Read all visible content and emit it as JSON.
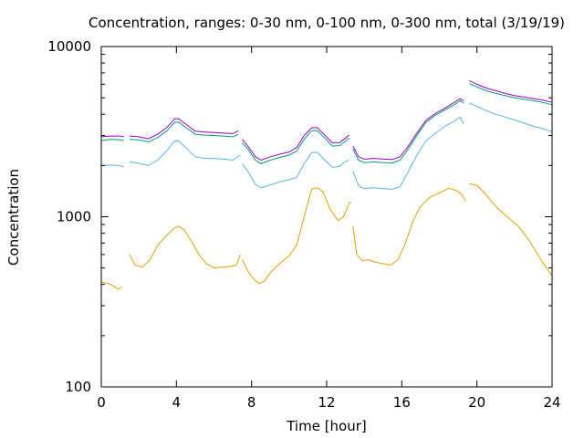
{
  "chart_data": {
    "type": "line",
    "title": "Concentration, ranges: 0-30 nm, 0-100 nm, 0-300 nm, total (3/19/19)",
    "xlabel": "Time [hour]",
    "ylabel": "Concentration",
    "xlim": [
      0,
      24
    ],
    "ylim": [
      100,
      10000
    ],
    "yscale": "log",
    "grid": false,
    "legend": "none",
    "x_ticks": [
      "0",
      "4",
      "8",
      "12",
      "16",
      "20",
      "24"
    ],
    "y_ticks": [
      "100",
      "1000",
      "10000"
    ],
    "series": [
      {
        "color": "#e69f00",
        "segments": [
          [
            [
              0,
              415
            ],
            [
              0.5,
              400
            ],
            [
              0.9,
              375
            ],
            [
              1.1,
              385
            ]
          ],
          [
            [
              1.5,
              600
            ],
            [
              1.8,
              520
            ],
            [
              2.2,
              505
            ],
            [
              2.6,
              560
            ],
            [
              3.0,
              680
            ],
            [
              3.5,
              780
            ],
            [
              3.9,
              860
            ],
            [
              4.1,
              880
            ],
            [
              4.4,
              840
            ],
            [
              4.8,
              720
            ],
            [
              5.2,
              600
            ],
            [
              5.6,
              530
            ],
            [
              6.0,
              500
            ],
            [
              6.4,
              505
            ],
            [
              6.8,
              510
            ],
            [
              7.2,
              520
            ],
            [
              7.4,
              600
            ]
          ],
          [
            [
              7.5,
              560
            ],
            [
              7.8,
              480
            ],
            [
              8.1,
              430
            ],
            [
              8.4,
              405
            ],
            [
              8.7,
              420
            ],
            [
              9.0,
              470
            ],
            [
              9.5,
              530
            ],
            [
              10.0,
              590
            ],
            [
              10.4,
              680
            ],
            [
              10.8,
              1000
            ],
            [
              11.2,
              1450
            ],
            [
              11.5,
              1480
            ],
            [
              11.8,
              1400
            ],
            [
              12.2,
              1100
            ],
            [
              12.6,
              950
            ],
            [
              12.9,
              1000
            ],
            [
              13.2,
              1200
            ],
            [
              13.3,
              1220
            ]
          ],
          [
            [
              13.4,
              880
            ],
            [
              13.6,
              600
            ],
            [
              13.9,
              550
            ],
            [
              14.2,
              560
            ],
            [
              14.6,
              540
            ],
            [
              15.0,
              530
            ],
            [
              15.4,
              520
            ],
            [
              15.8,
              560
            ],
            [
              16.2,
              700
            ],
            [
              16.6,
              950
            ],
            [
              17.0,
              1150
            ],
            [
              17.5,
              1300
            ],
            [
              18.0,
              1380
            ],
            [
              18.5,
              1470
            ],
            [
              18.9,
              1430
            ],
            [
              19.2,
              1350
            ],
            [
              19.4,
              1230
            ]
          ],
          [
            [
              19.6,
              1560
            ],
            [
              20.0,
              1530
            ],
            [
              20.4,
              1380
            ],
            [
              21.0,
              1150
            ],
            [
              21.6,
              1000
            ],
            [
              22.2,
              880
            ],
            [
              22.8,
              720
            ],
            [
              23.4,
              560
            ],
            [
              24.0,
              450
            ]
          ]
        ]
      },
      {
        "color": "#56b4e9",
        "segments": [
          [
            [
              0,
              2000
            ],
            [
              0.5,
              2010
            ],
            [
              1.0,
              2000
            ],
            [
              1.2,
              1960
            ]
          ],
          [
            [
              1.5,
              2100
            ],
            [
              2.0,
              2060
            ],
            [
              2.5,
              2000
            ],
            [
              3.0,
              2150
            ],
            [
              3.5,
              2450
            ],
            [
              3.9,
              2780
            ],
            [
              4.1,
              2800
            ],
            [
              4.5,
              2550
            ],
            [
              5.0,
              2250
            ],
            [
              5.5,
              2200
            ],
            [
              6.0,
              2200
            ],
            [
              6.5,
              2180
            ],
            [
              7.0,
              2150
            ],
            [
              7.4,
              2300
            ]
          ],
          [
            [
              7.5,
              2050
            ],
            [
              7.8,
              1850
            ],
            [
              8.2,
              1550
            ],
            [
              8.5,
              1480
            ],
            [
              9.0,
              1540
            ],
            [
              9.5,
              1600
            ],
            [
              10.0,
              1650
            ],
            [
              10.4,
              1700
            ],
            [
              10.8,
              2050
            ],
            [
              11.2,
              2380
            ],
            [
              11.5,
              2390
            ],
            [
              11.9,
              2150
            ],
            [
              12.3,
              1950
            ],
            [
              12.7,
              1980
            ],
            [
              13.0,
              2120
            ],
            [
              13.2,
              2150
            ]
          ],
          [
            [
              13.4,
              1850
            ],
            [
              13.7,
              1520
            ],
            [
              14.0,
              1460
            ],
            [
              14.5,
              1480
            ],
            [
              15.0,
              1460
            ],
            [
              15.5,
              1450
            ],
            [
              15.9,
              1500
            ],
            [
              16.3,
              1800
            ],
            [
              16.8,
              2300
            ],
            [
              17.3,
              2800
            ],
            [
              17.8,
              3100
            ],
            [
              18.3,
              3400
            ],
            [
              18.8,
              3650
            ],
            [
              19.1,
              3850
            ],
            [
              19.3,
              3500
            ]
          ],
          [
            [
              19.6,
              4650
            ],
            [
              20.0,
              4450
            ],
            [
              20.5,
              4200
            ],
            [
              21.0,
              4000
            ],
            [
              21.5,
              3850
            ],
            [
              22.0,
              3700
            ],
            [
              22.5,
              3550
            ],
            [
              23.0,
              3400
            ],
            [
              23.5,
              3300
            ],
            [
              24.0,
              3150
            ]
          ]
        ]
      },
      {
        "color": "#009e73",
        "segments": [
          [
            [
              0,
              2800
            ],
            [
              0.5,
              2850
            ],
            [
              1.0,
              2830
            ],
            [
              1.2,
              2800
            ]
          ],
          [
            [
              1.5,
              2850
            ],
            [
              2.0,
              2830
            ],
            [
              2.5,
              2750
            ],
            [
              3.0,
              2920
            ],
            [
              3.5,
              3200
            ],
            [
              3.9,
              3580
            ],
            [
              4.1,
              3600
            ],
            [
              4.5,
              3350
            ],
            [
              5.0,
              3050
            ],
            [
              5.5,
              3020
            ],
            [
              6.0,
              3000
            ],
            [
              6.5,
              2980
            ],
            [
              7.0,
              2950
            ],
            [
              7.3,
              3050
            ]
          ],
          [
            [
              7.5,
              2720
            ],
            [
              7.8,
              2500
            ],
            [
              8.2,
              2150
            ],
            [
              8.5,
              2050
            ],
            [
              9.0,
              2150
            ],
            [
              9.5,
              2230
            ],
            [
              10.0,
              2300
            ],
            [
              10.4,
              2430
            ],
            [
              10.8,
              2850
            ],
            [
              11.2,
              3200
            ],
            [
              11.5,
              3210
            ],
            [
              11.9,
              2900
            ],
            [
              12.3,
              2600
            ],
            [
              12.7,
              2620
            ],
            [
              13.0,
              2780
            ],
            [
              13.2,
              2900
            ]
          ],
          [
            [
              13.4,
              2500
            ],
            [
              13.7,
              2150
            ],
            [
              14.0,
              2080
            ],
            [
              14.5,
              2100
            ],
            [
              15.0,
              2080
            ],
            [
              15.5,
              2070
            ],
            [
              15.9,
              2150
            ],
            [
              16.3,
              2450
            ],
            [
              16.8,
              3000
            ],
            [
              17.3,
              3600
            ],
            [
              17.8,
              3950
            ],
            [
              18.3,
              4250
            ],
            [
              18.8,
              4550
            ],
            [
              19.1,
              4800
            ],
            [
              19.3,
              4650
            ]
          ],
          [
            [
              19.6,
              6050
            ],
            [
              20.0,
              5800
            ],
            [
              20.5,
              5500
            ],
            [
              21.0,
              5300
            ],
            [
              21.5,
              5150
            ],
            [
              22.0,
              5000
            ],
            [
              22.5,
              4900
            ],
            [
              23.0,
              4800
            ],
            [
              23.5,
              4700
            ],
            [
              24.0,
              4550
            ]
          ]
        ]
      },
      {
        "color": "#9400d3",
        "segments": [
          [
            [
              0,
              2950
            ],
            [
              0.5,
              2980
            ],
            [
              1.0,
              2980
            ],
            [
              1.2,
              2950
            ]
          ],
          [
            [
              1.5,
              2980
            ],
            [
              2.0,
              2950
            ],
            [
              2.5,
              2870
            ],
            [
              3.0,
              3050
            ],
            [
              3.5,
              3350
            ],
            [
              3.9,
              3750
            ],
            [
              4.1,
              3770
            ],
            [
              4.5,
              3500
            ],
            [
              5.0,
              3180
            ],
            [
              5.5,
              3150
            ],
            [
              6.0,
              3120
            ],
            [
              6.5,
              3100
            ],
            [
              7.0,
              3080
            ],
            [
              7.3,
              3200
            ]
          ],
          [
            [
              7.5,
              2850
            ],
            [
              7.8,
              2600
            ],
            [
              8.2,
              2250
            ],
            [
              8.5,
              2150
            ],
            [
              9.0,
              2250
            ],
            [
              9.5,
              2330
            ],
            [
              10.0,
              2400
            ],
            [
              10.4,
              2550
            ],
            [
              10.8,
              3000
            ],
            [
              11.2,
              3330
            ],
            [
              11.5,
              3340
            ],
            [
              11.9,
              3020
            ],
            [
              12.3,
              2720
            ],
            [
              12.7,
              2730
            ],
            [
              13.0,
              2900
            ],
            [
              13.2,
              3020
            ]
          ],
          [
            [
              13.4,
              2600
            ],
            [
              13.7,
              2250
            ],
            [
              14.0,
              2180
            ],
            [
              14.5,
              2200
            ],
            [
              15.0,
              2180
            ],
            [
              15.5,
              2170
            ],
            [
              15.9,
              2250
            ],
            [
              16.3,
              2550
            ],
            [
              16.8,
              3100
            ],
            [
              17.3,
              3700
            ],
            [
              17.8,
              4050
            ],
            [
              18.3,
              4350
            ],
            [
              18.8,
              4700
            ],
            [
              19.1,
              4950
            ],
            [
              19.3,
              4800
            ]
          ],
          [
            [
              19.6,
              6300
            ],
            [
              20.0,
              6000
            ],
            [
              20.5,
              5700
            ],
            [
              21.0,
              5500
            ],
            [
              21.5,
              5300
            ],
            [
              22.0,
              5150
            ],
            [
              22.5,
              5050
            ],
            [
              23.0,
              4950
            ],
            [
              23.5,
              4850
            ],
            [
              24.0,
              4700
            ]
          ]
        ]
      }
    ]
  }
}
